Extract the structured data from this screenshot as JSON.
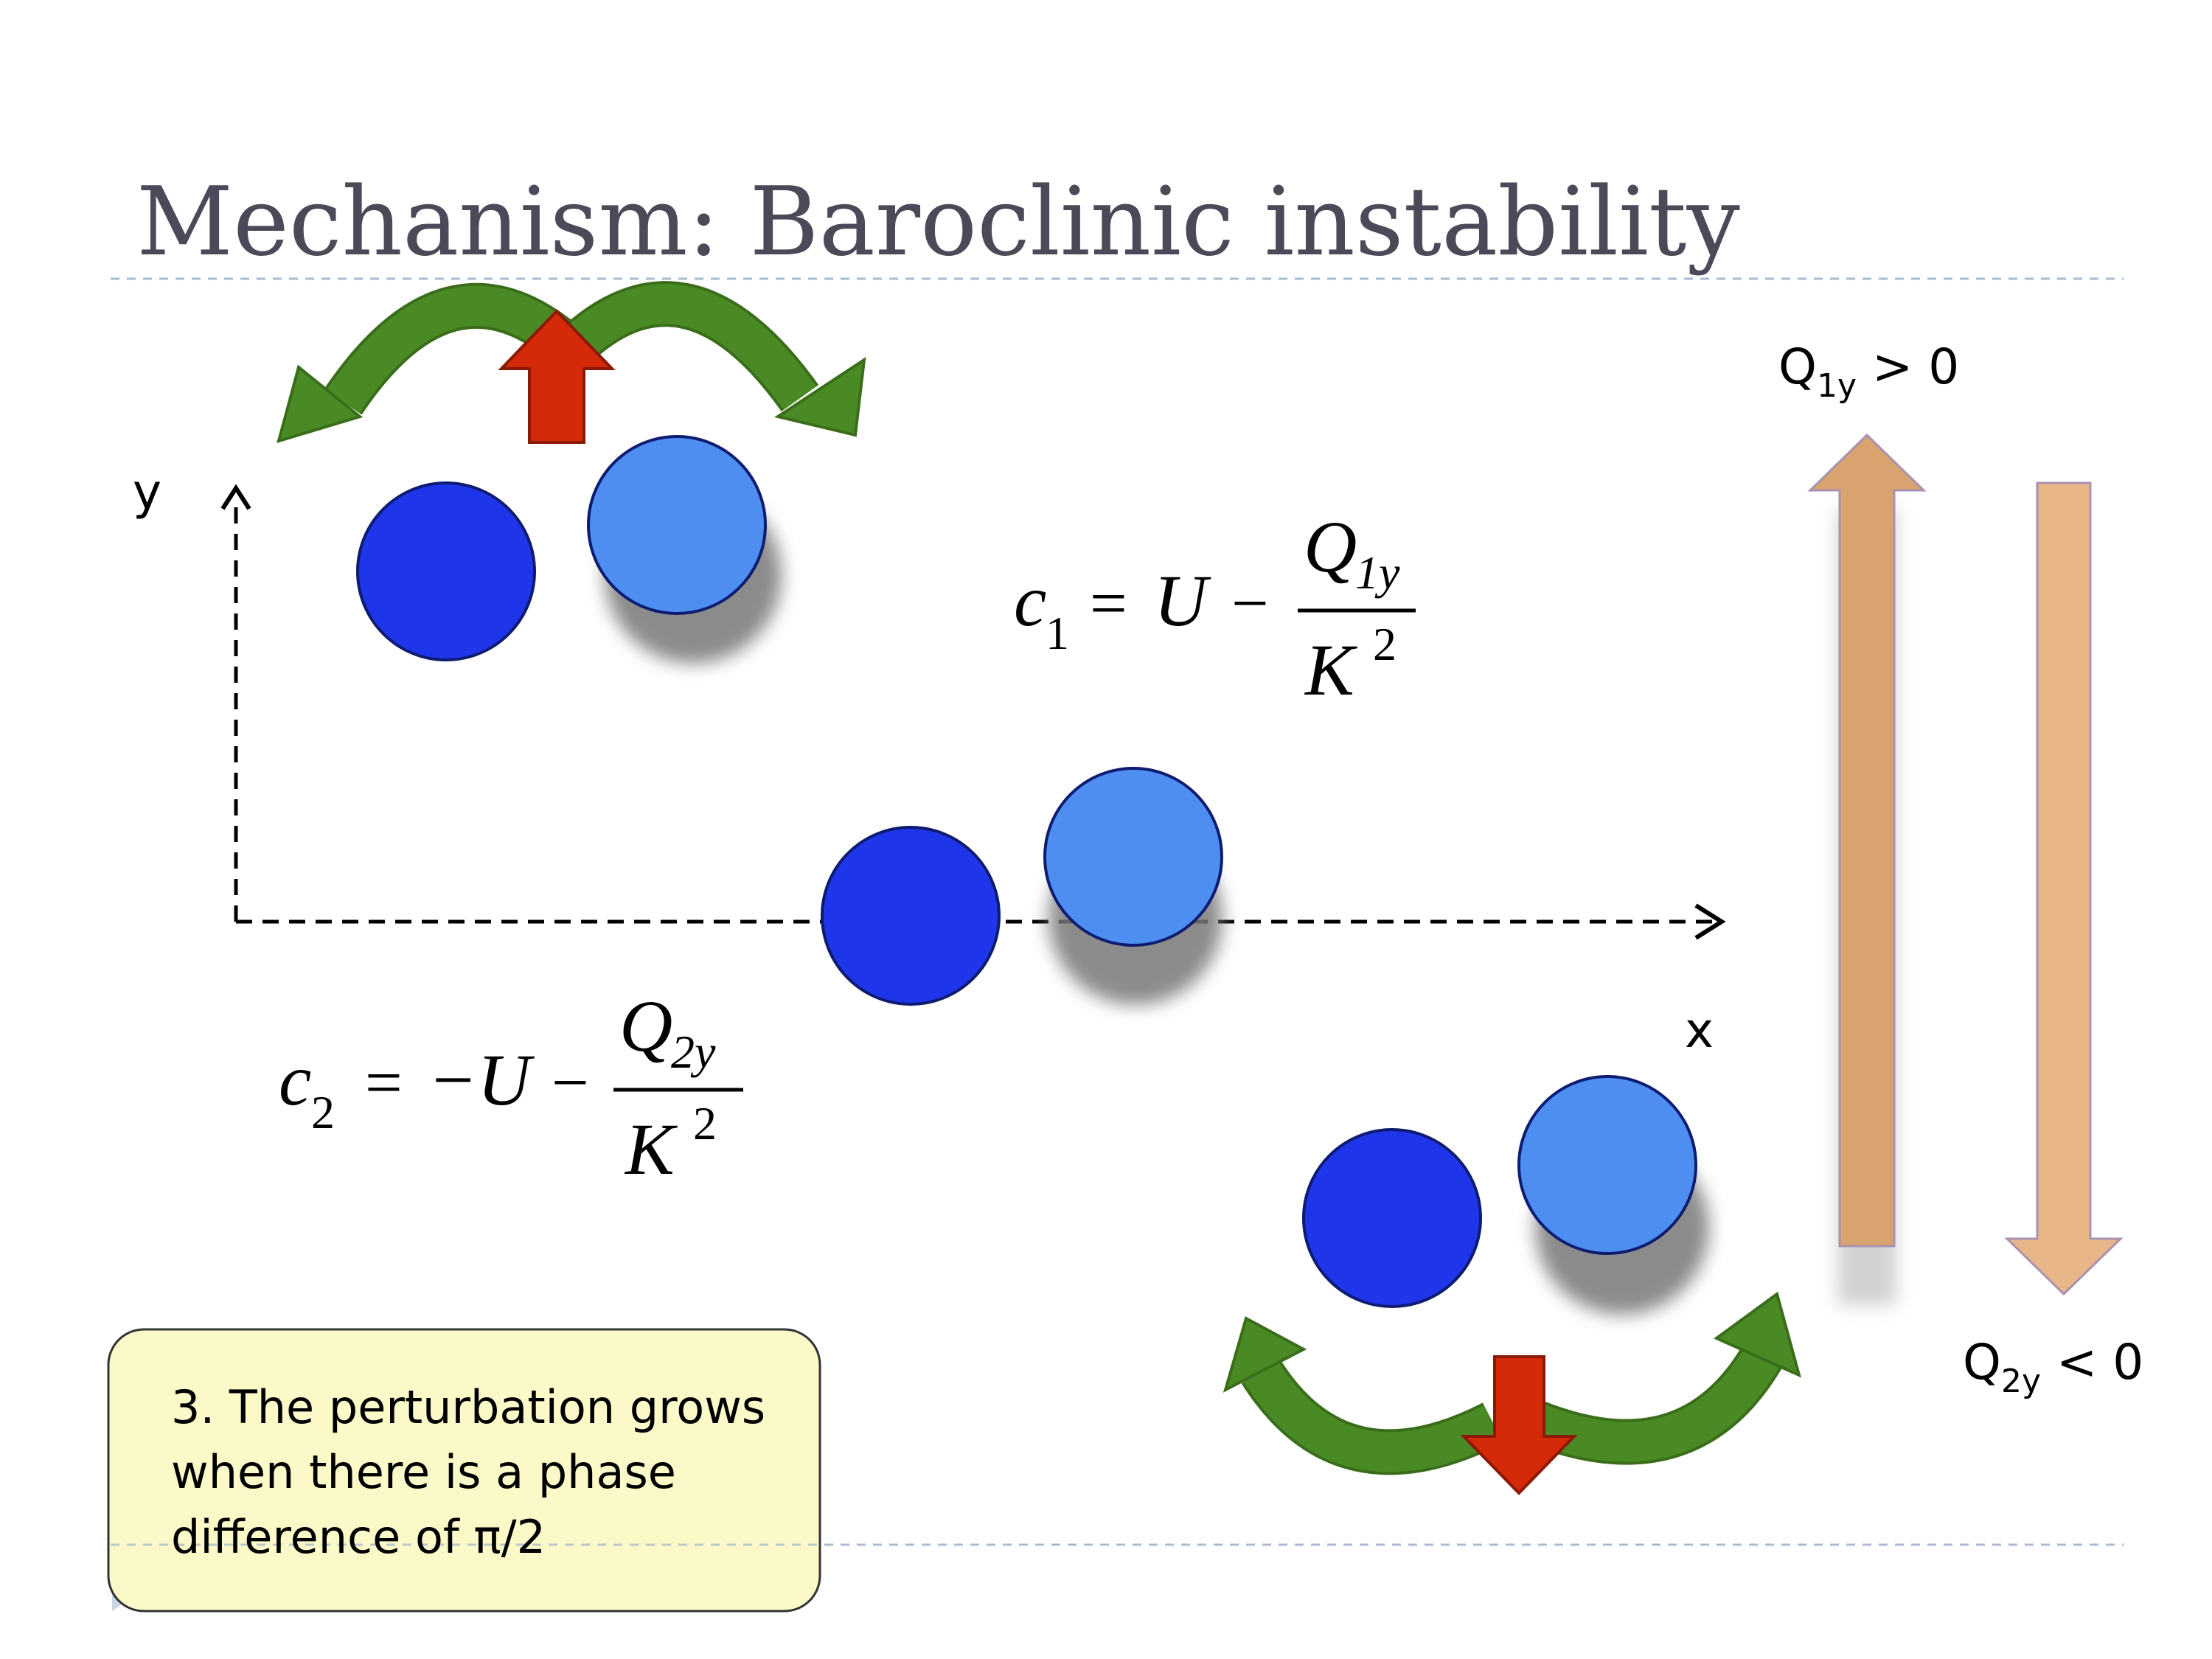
{
  "slide": {
    "title": "Mechanism: Baroclinic instability",
    "axis": {
      "y_label": "y",
      "x_label": "x"
    },
    "equations": {
      "c1": {
        "lhs": "c",
        "lhs_sub": "1",
        "eq": "=",
        "U": "U",
        "minus": "−",
        "num": "Q",
        "num_sub": "1y",
        "den": "K",
        "den_sup": "2"
      },
      "c2": {
        "lhs": "c",
        "lhs_sub": "2",
        "eq": "=",
        "neg": "−U",
        "minus": "−",
        "num": "Q",
        "num_sub": "2y",
        "den": "K",
        "den_sup": "2"
      }
    },
    "gradients": {
      "q1": {
        "main": "Q",
        "sub": "1y",
        "rel": " > 0"
      },
      "q2": {
        "main": "Q",
        "sub": "2y",
        "rel": " < 0"
      }
    },
    "note": {
      "line1": "3. The perturbation grows",
      "line2": "when there is a phase",
      "line3": "difference of π/2"
    },
    "colors": {
      "dark_blue": "#1f35ea",
      "light_blue": "#4d8ef0",
      "green_arrow": "#4a8a25",
      "red_arrow": "#d42a0a",
      "tan_arrow": "#e9b688",
      "note_bg": "#fbf9c8",
      "title_text": "#4a4a58",
      "divider": "#aabbd0"
    }
  }
}
